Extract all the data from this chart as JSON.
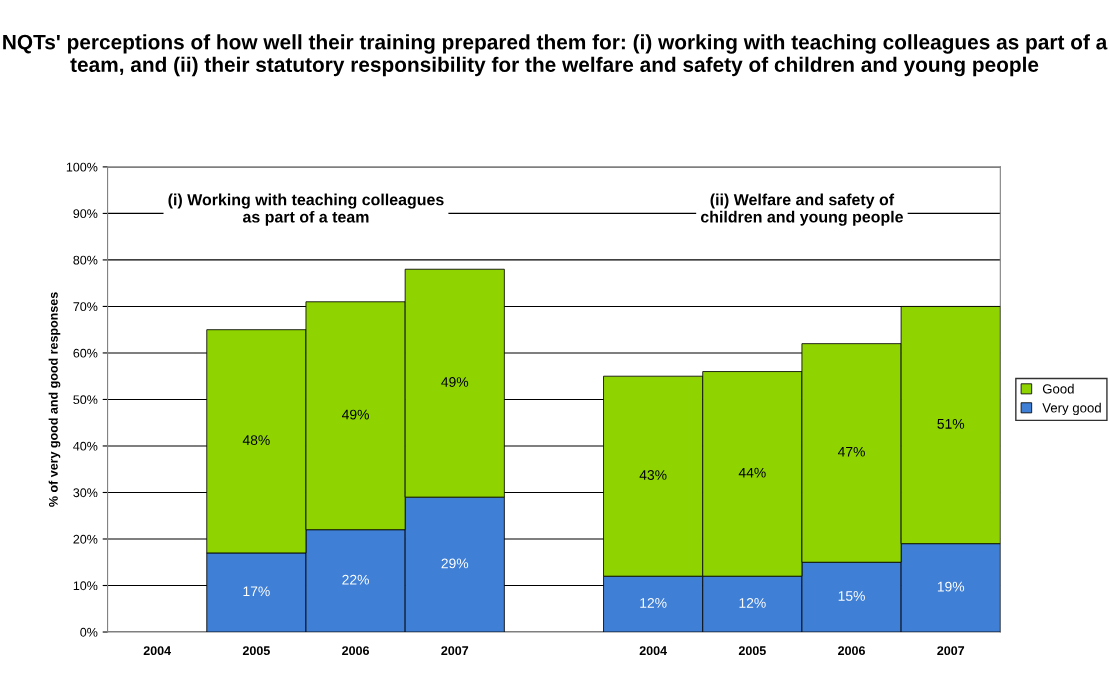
{
  "chart_data": {
    "type": "bar",
    "stacked": true,
    "title": "NQTs' perceptions of how well their training prepared them for: (i) working with teaching colleagues as part of a team, and (ii) their statutory responsibility for the welfare and safety of children and young people",
    "ylabel": "% of very good and good responses",
    "categories": [
      "2004",
      "2005",
      "2006",
      "2007",
      null,
      "2004",
      "2005",
      "2006",
      "2007"
    ],
    "series": [
      {
        "name": "Very good",
        "color": "#3f7fd6",
        "values": [
          null,
          17,
          22,
          29,
          null,
          12,
          12,
          15,
          19
        ],
        "value_labels": [
          null,
          "17%",
          "22%",
          "29%",
          null,
          "12%",
          "12%",
          "15%",
          "19%"
        ]
      },
      {
        "name": "Good",
        "color": "#8fd400",
        "values": [
          null,
          48,
          49,
          49,
          null,
          43,
          44,
          47,
          51
        ],
        "value_labels": [
          null,
          "48%",
          "49%",
          "49%",
          null,
          "43%",
          "44%",
          "47%",
          "51%"
        ]
      }
    ],
    "ylim": [
      0,
      100
    ],
    "yticks": [
      {
        "value": 0,
        "label": "0%"
      },
      {
        "value": 10,
        "label": "10%"
      },
      {
        "value": 20,
        "label": "20%"
      },
      {
        "value": 30,
        "label": "30%"
      },
      {
        "value": 40,
        "label": "40%"
      },
      {
        "value": 50,
        "label": "50%"
      },
      {
        "value": 60,
        "label": "60%"
      },
      {
        "value": 70,
        "label": "70%"
      },
      {
        "value": 80,
        "label": "80%"
      },
      {
        "value": 90,
        "label": "90%"
      },
      {
        "value": 100,
        "label": "100%"
      }
    ],
    "grid": "y",
    "legend": "right",
    "annotations": [
      "(i) Working with teaching colleagues\nas part of a team",
      "(ii) Welfare and safety of\nchildren and young people"
    ]
  }
}
